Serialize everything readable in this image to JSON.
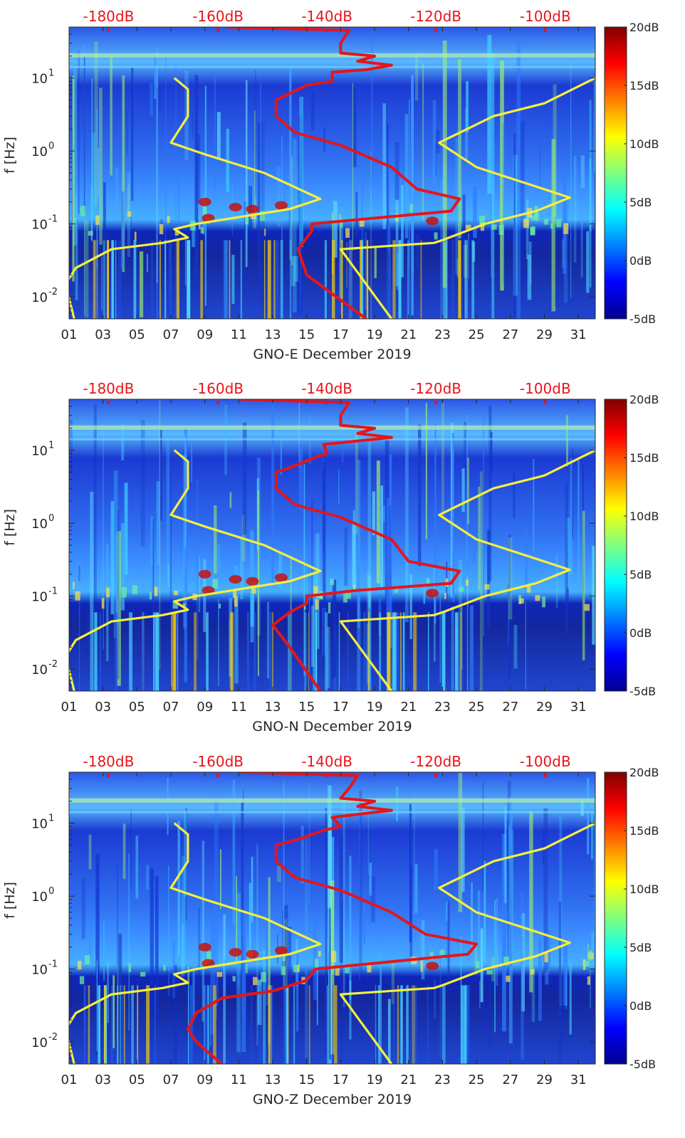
{
  "colors": {
    "yellow_curve": "#f5ef3c",
    "red_curve": "#e3161b",
    "db_axis_text": "#e8141a",
    "background_band": "#1d3fd8"
  },
  "chart_data": [
    {
      "type": "heatmap",
      "title": "",
      "xlabel": "GNO-E December 2019",
      "ylabel": "f [Hz]",
      "x_range": [
        1,
        32
      ],
      "x_ticks": [
        "01",
        "03",
        "05",
        "07",
        "09",
        "11",
        "13",
        "15",
        "17",
        "19",
        "21",
        "23",
        "25",
        "27",
        "29",
        "31"
      ],
      "y_range": [
        0.005,
        50
      ],
      "y_scale": "log",
      "y_ticks": [
        {
          "value": 0.01,
          "base": "10",
          "exp": "-2"
        },
        {
          "value": 0.1,
          "base": "10",
          "exp": "-1"
        },
        {
          "value": 1,
          "base": "10",
          "exp": "0"
        },
        {
          "value": 10,
          "base": "10",
          "exp": "1"
        }
      ],
      "top_axis_ticks": [
        "-180dB",
        "-160dB",
        "-140dB",
        "-120dB",
        "-100dB"
      ],
      "colorbar": {
        "range": [
          -5,
          20
        ],
        "ticks": [
          "20dB",
          "15dB",
          "10dB",
          "5dB",
          "0dB",
          "-5dB"
        ],
        "colormap": "jet"
      },
      "series": [
        {
          "name": "yellow-left",
          "color": "yellow",
          "points": [
            [
              1.3,
              0.005
            ],
            [
              0.8,
              0.015
            ],
            [
              1.4,
              0.025
            ],
            [
              3.5,
              0.045
            ],
            [
              6.5,
              0.055
            ],
            [
              8.0,
              0.065
            ],
            [
              7.2,
              0.085
            ],
            [
              8.5,
              0.1
            ],
            [
              14.0,
              0.16
            ],
            [
              15.8,
              0.22
            ],
            [
              12.5,
              0.5
            ],
            [
              9.0,
              0.9
            ],
            [
              7.0,
              1.3
            ],
            [
              8.0,
              3.0
            ],
            [
              8.0,
              7.0
            ],
            [
              7.2,
              10.0
            ]
          ]
        },
        {
          "name": "yellow-right",
          "color": "yellow",
          "points": [
            [
              20.0,
              0.005
            ],
            [
              17.0,
              0.045
            ],
            [
              22.5,
              0.055
            ],
            [
              23.0,
              0.06
            ],
            [
              25.5,
              0.1
            ],
            [
              28.5,
              0.15
            ],
            [
              30.5,
              0.23
            ],
            [
              25.0,
              0.6
            ],
            [
              22.8,
              1.3
            ],
            [
              26.0,
              3.0
            ],
            [
              29.0,
              4.5
            ],
            [
              32.0,
              10.0
            ]
          ]
        },
        {
          "name": "red-noise-model",
          "color": "red",
          "points": [
            [
              18.5,
              0.005
            ],
            [
              15.0,
              0.02
            ],
            [
              14.5,
              0.045
            ],
            [
              15.3,
              0.08
            ],
            [
              15.3,
              0.1
            ],
            [
              23.5,
              0.15
            ],
            [
              24.0,
              0.22
            ],
            [
              21.5,
              0.3
            ],
            [
              20.0,
              0.6
            ],
            [
              17.0,
              1.2
            ],
            [
              14.3,
              1.8
            ],
            [
              13.2,
              3.0
            ],
            [
              13.2,
              5.0
            ],
            [
              13.9,
              6.0
            ],
            [
              15.0,
              8.0
            ],
            [
              16.5,
              9.0
            ],
            [
              16.5,
              12.0
            ],
            [
              18.5,
              13.0
            ],
            [
              20.0,
              15.0
            ],
            [
              18.0,
              17.0
            ],
            [
              19.0,
              20.0
            ],
            [
              17.0,
              22.0
            ],
            [
              17.0,
              30.0
            ],
            [
              17.5,
              45.0
            ],
            [
              10.3,
              50.0
            ]
          ]
        }
      ]
    },
    {
      "type": "heatmap",
      "title": "",
      "xlabel": "GNO-N December 2019",
      "ylabel": "f [Hz]",
      "x_range": [
        1,
        32
      ],
      "x_ticks": [
        "01",
        "03",
        "05",
        "07",
        "09",
        "11",
        "13",
        "15",
        "17",
        "19",
        "21",
        "23",
        "25",
        "27",
        "29",
        "31"
      ],
      "y_range": [
        0.005,
        50
      ],
      "y_scale": "log",
      "y_ticks": [
        {
          "value": 0.01,
          "base": "10",
          "exp": "-2"
        },
        {
          "value": 0.1,
          "base": "10",
          "exp": "-1"
        },
        {
          "value": 1,
          "base": "10",
          "exp": "0"
        },
        {
          "value": 10,
          "base": "10",
          "exp": "1"
        }
      ],
      "top_axis_ticks": [
        "-180dB",
        "-160dB",
        "-140dB",
        "-120dB",
        "-100dB"
      ],
      "colorbar": {
        "range": [
          -5,
          20
        ],
        "ticks": [
          "20dB",
          "15dB",
          "10dB",
          "5dB",
          "0dB",
          "-5dB"
        ],
        "colormap": "jet"
      },
      "series": [
        {
          "name": "yellow-left",
          "color": "yellow",
          "points": [
            [
              1.3,
              0.005
            ],
            [
              0.8,
              0.015
            ],
            [
              1.4,
              0.025
            ],
            [
              3.5,
              0.045
            ],
            [
              6.5,
              0.055
            ],
            [
              8.0,
              0.065
            ],
            [
              7.2,
              0.085
            ],
            [
              8.5,
              0.1
            ],
            [
              14.0,
              0.16
            ],
            [
              15.8,
              0.22
            ],
            [
              12.5,
              0.5
            ],
            [
              9.0,
              0.9
            ],
            [
              7.0,
              1.3
            ],
            [
              8.0,
              3.0
            ],
            [
              8.0,
              7.0
            ],
            [
              7.2,
              10.0
            ]
          ]
        },
        {
          "name": "yellow-right",
          "color": "yellow",
          "points": [
            [
              20.0,
              0.005
            ],
            [
              17.0,
              0.045
            ],
            [
              22.5,
              0.055
            ],
            [
              23.0,
              0.06
            ],
            [
              25.5,
              0.1
            ],
            [
              28.5,
              0.15
            ],
            [
              30.5,
              0.23
            ],
            [
              25.0,
              0.6
            ],
            [
              22.8,
              1.3
            ],
            [
              26.0,
              3.0
            ],
            [
              29.0,
              4.5
            ],
            [
              32.0,
              10.0
            ]
          ]
        },
        {
          "name": "red-noise-model",
          "color": "red",
          "points": [
            [
              15.8,
              0.005
            ],
            [
              14.0,
              0.02
            ],
            [
              13.0,
              0.04
            ],
            [
              14.0,
              0.06
            ],
            [
              15.0,
              0.08
            ],
            [
              15.0,
              0.1
            ],
            [
              18.0,
              0.12
            ],
            [
              23.5,
              0.15
            ],
            [
              24.0,
              0.22
            ],
            [
              21.0,
              0.3
            ],
            [
              20.0,
              0.6
            ],
            [
              17.0,
              1.2
            ],
            [
              14.3,
              1.8
            ],
            [
              13.2,
              3.0
            ],
            [
              13.2,
              5.0
            ],
            [
              14.2,
              6.0
            ],
            [
              15.5,
              8.0
            ],
            [
              16.2,
              9.0
            ],
            [
              16.0,
              12.0
            ],
            [
              20.0,
              15.0
            ],
            [
              18.0,
              17.0
            ],
            [
              19.0,
              20.0
            ],
            [
              17.0,
              22.0
            ],
            [
              17.0,
              30.0
            ],
            [
              17.5,
              45.0
            ],
            [
              11.0,
              50.0
            ]
          ]
        }
      ]
    },
    {
      "type": "heatmap",
      "title": "",
      "xlabel": "GNO-Z December 2019",
      "ylabel": "f [Hz]",
      "x_range": [
        1,
        32
      ],
      "x_ticks": [
        "01",
        "03",
        "05",
        "07",
        "09",
        "11",
        "13",
        "15",
        "17",
        "19",
        "21",
        "23",
        "25",
        "27",
        "29",
        "31"
      ],
      "y_range": [
        0.005,
        50
      ],
      "y_scale": "log",
      "y_ticks": [
        {
          "value": 0.01,
          "base": "10",
          "exp": "-2"
        },
        {
          "value": 0.1,
          "base": "10",
          "exp": "-1"
        },
        {
          "value": 1,
          "base": "10",
          "exp": "0"
        },
        {
          "value": 10,
          "base": "10",
          "exp": "1"
        }
      ],
      "top_axis_ticks": [
        "-180dB",
        "-160dB",
        "-140dB",
        "-120dB",
        "-100dB"
      ],
      "colorbar": {
        "range": [
          -5,
          20
        ],
        "ticks": [
          "20dB",
          "15dB",
          "10dB",
          "5dB",
          "0dB",
          "-5dB"
        ],
        "colormap": "jet"
      },
      "series": [
        {
          "name": "yellow-left",
          "color": "yellow",
          "points": [
            [
              1.3,
              0.005
            ],
            [
              0.8,
              0.015
            ],
            [
              1.4,
              0.025
            ],
            [
              3.5,
              0.045
            ],
            [
              6.5,
              0.055
            ],
            [
              8.0,
              0.065
            ],
            [
              7.2,
              0.085
            ],
            [
              8.5,
              0.1
            ],
            [
              14.0,
              0.16
            ],
            [
              15.8,
              0.22
            ],
            [
              12.5,
              0.5
            ],
            [
              9.0,
              0.9
            ],
            [
              7.0,
              1.3
            ],
            [
              8.0,
              3.0
            ],
            [
              8.0,
              7.0
            ],
            [
              7.2,
              10.0
            ]
          ]
        },
        {
          "name": "yellow-right",
          "color": "yellow",
          "points": [
            [
              20.0,
              0.005
            ],
            [
              17.0,
              0.045
            ],
            [
              22.5,
              0.055
            ],
            [
              23.0,
              0.06
            ],
            [
              25.5,
              0.1
            ],
            [
              28.5,
              0.15
            ],
            [
              30.5,
              0.23
            ],
            [
              25.0,
              0.6
            ],
            [
              22.8,
              1.3
            ],
            [
              26.0,
              3.0
            ],
            [
              29.0,
              4.5
            ],
            [
              32.0,
              10.0
            ]
          ]
        },
        {
          "name": "red-noise-model",
          "color": "red",
          "points": [
            [
              10.0,
              0.005
            ],
            [
              8.5,
              0.01
            ],
            [
              8.0,
              0.015
            ],
            [
              8.5,
              0.025
            ],
            [
              10.0,
              0.04
            ],
            [
              13.0,
              0.05
            ],
            [
              15.0,
              0.07
            ],
            [
              15.5,
              0.1
            ],
            [
              19.0,
              0.12
            ],
            [
              24.5,
              0.16
            ],
            [
              25.0,
              0.22
            ],
            [
              22.0,
              0.3
            ],
            [
              20.0,
              0.6
            ],
            [
              17.0,
              1.2
            ],
            [
              14.3,
              1.8
            ],
            [
              13.2,
              3.0
            ],
            [
              13.2,
              5.0
            ],
            [
              14.5,
              6.0
            ],
            [
              16.0,
              8.0
            ],
            [
              17.0,
              9.0
            ],
            [
              16.5,
              12.0
            ],
            [
              20.0,
              15.0
            ],
            [
              18.0,
              17.0
            ],
            [
              19.0,
              20.0
            ],
            [
              17.0,
              22.0
            ],
            [
              17.5,
              30.0
            ],
            [
              18.0,
              45.0
            ],
            [
              11.0,
              50.0
            ]
          ]
        }
      ]
    }
  ]
}
